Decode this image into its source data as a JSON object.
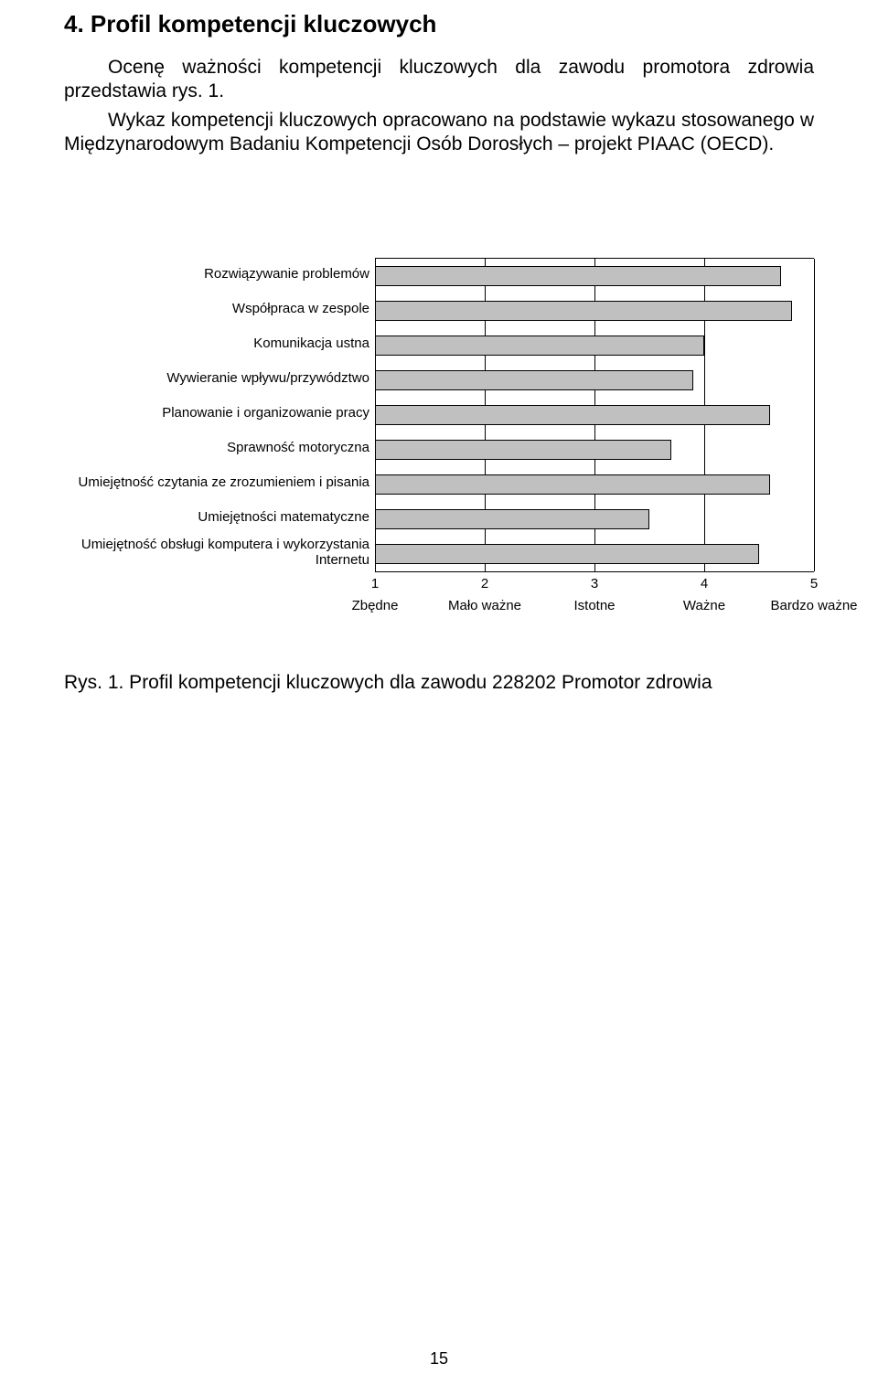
{
  "section": {
    "title": "4. Profil kompetencji kluczowych",
    "paragraphs": [
      "Ocenę ważności kompetencji kluczowych dla zawodu promotora zdrowia przedstawia rys. 1.",
      "Wykaz kompetencji kluczowych opracowano na podstawie wykazu stosowanego w Międzynarodowym Badaniu Kompetencji Osób Dorosłych – projekt PIAAC (OECD)."
    ]
  },
  "chart": {
    "type": "bar-horizontal",
    "x_min": 1,
    "x_max": 5,
    "x_ticks": [
      1,
      2,
      3,
      4,
      5
    ],
    "x_tick_labels": [
      "Zbędne",
      "Mało ważne",
      "Istotne",
      "Ważne",
      "Bardzo ważne"
    ],
    "bar_fill": "#c0c0c0",
    "bar_border": "#000000",
    "grid_color": "#000000",
    "background_color": "#ffffff",
    "label_fontsize": 15,
    "items": [
      {
        "label": "Rozwiązywanie problemów",
        "value": 4.7
      },
      {
        "label": "Współpraca w zespole",
        "value": 4.8
      },
      {
        "label": "Komunikacja ustna",
        "value": 4.0
      },
      {
        "label": "Wywieranie wpływu/przywództwo",
        "value": 3.9
      },
      {
        "label": "Planowanie i organizowanie pracy",
        "value": 4.6
      },
      {
        "label": "Sprawność motoryczna",
        "value": 3.7
      },
      {
        "label": "Umiejętność czytania ze zrozumieniem i pisania",
        "value": 4.6
      },
      {
        "label": "Umiejętności matematyczne",
        "value": 3.5
      },
      {
        "label": "Umiejętność obsługi komputera i wykorzystania Internetu",
        "value": 4.5
      }
    ]
  },
  "figure_caption": "Rys. 1. Profil kompetencji kluczowych dla zawodu 228202 Promotor zdrowia",
  "page_number": "15"
}
